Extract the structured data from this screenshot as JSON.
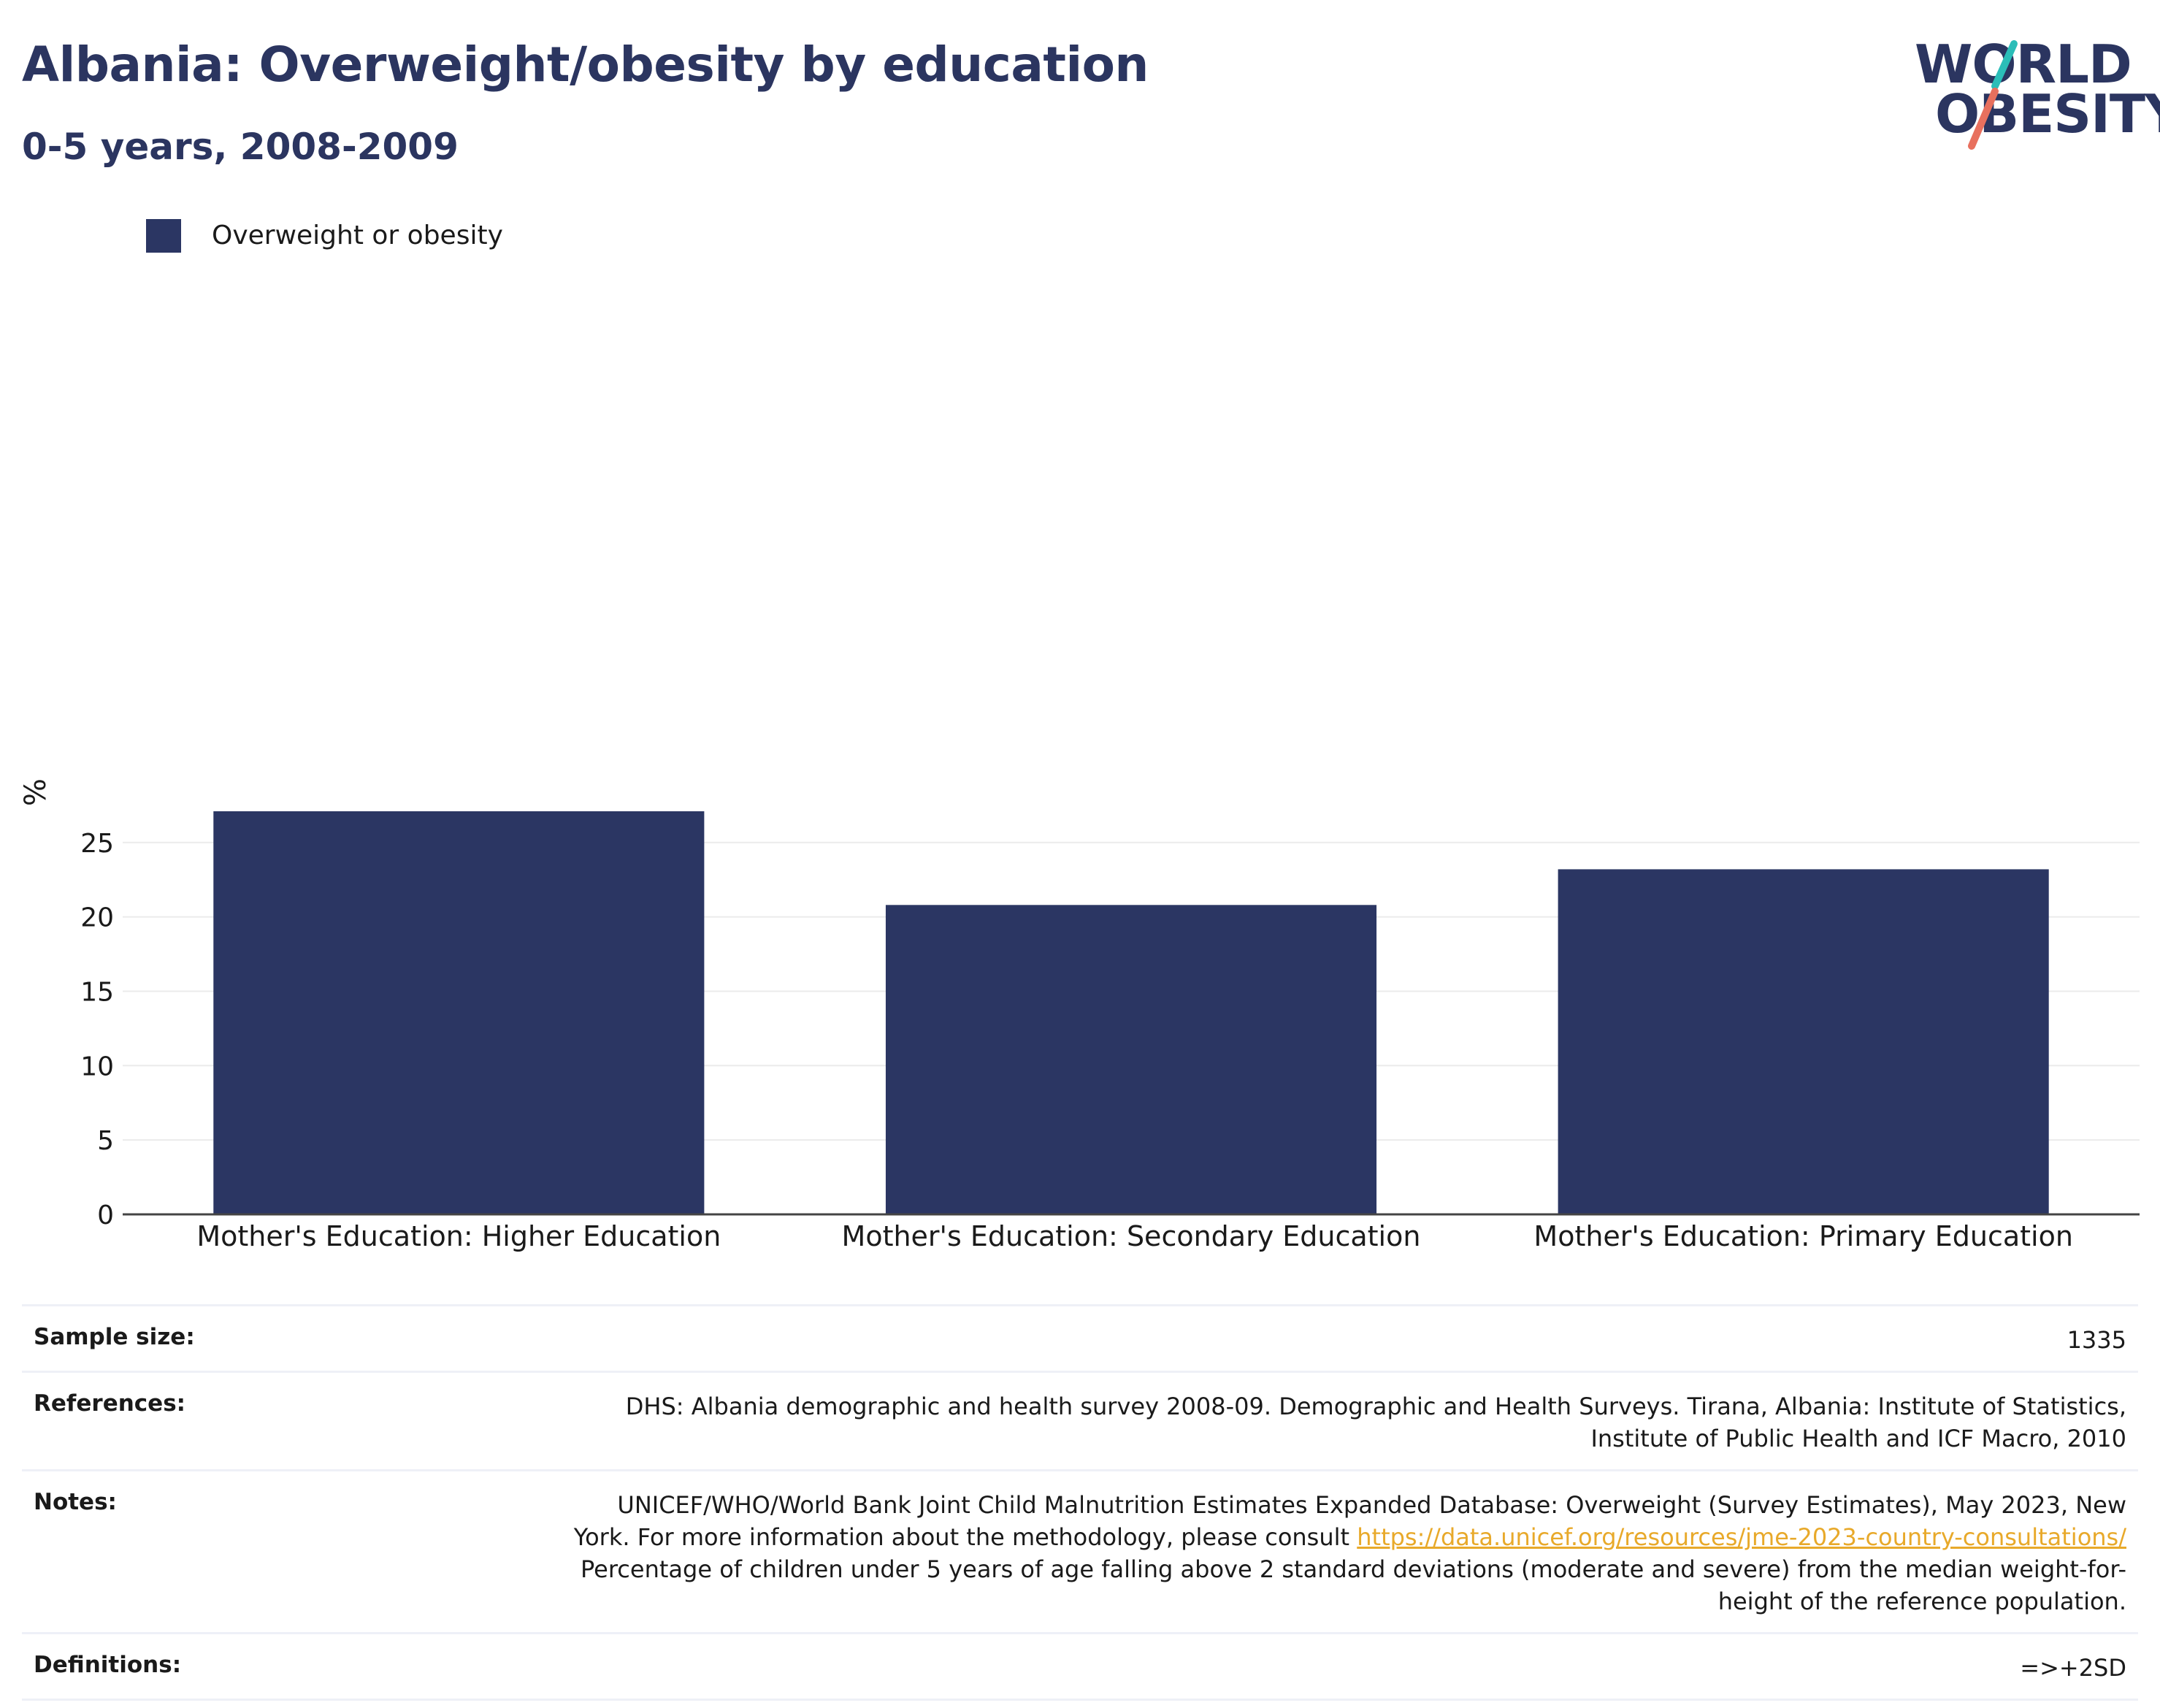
{
  "header": {
    "title": "Albania: Overweight/obesity by education",
    "subtitle": "0-5 years, 2008-2009"
  },
  "logo": {
    "line1": "WORLD",
    "line2": "OBESITY",
    "accent_colors": [
      "#2bbdb8",
      "#e8705e"
    ]
  },
  "legend": {
    "label": "Overweight or obesity",
    "color": "#2b3663"
  },
  "chart_data": {
    "type": "bar",
    "categories": [
      "Mother's Education: Higher Education",
      "Mother's Education: Secondary Education",
      "Mother's Education: Primary Education"
    ],
    "series": [
      {
        "name": "Overweight or obesity",
        "values": [
          27.1,
          20.8,
          23.2
        ],
        "color": "#2b3663"
      }
    ],
    "ylabel": "%",
    "ylim": [
      0,
      30
    ],
    "yticks": [
      0,
      5,
      10,
      15,
      20,
      25
    ],
    "grid": true,
    "legend_position": "top-left"
  },
  "info_table": {
    "sample_size": {
      "label": "Sample size:",
      "value": "1335"
    },
    "references": {
      "label": "References:",
      "line1": "DHS: Albania demographic and health survey 2008-09. Demographic and Health Surveys. Tirana, Albania: Institute of Statistics,",
      "line2": "Institute of Public Health and ICF Macro, 2010"
    },
    "notes": {
      "label": "Notes:",
      "line1": "UNICEF/WHO/World Bank Joint Child Malnutrition Estimates Expanded Database: Overweight (Survey Estimates), May 2023, New",
      "line2_prefix": "York. For more information about the methodology, please consult ",
      "link": "https://data.unicef.org/resources/jme-2023-country-consultations/",
      "line3": "Percentage of children under 5 years of age falling above 2 standard deviations (moderate and severe) from the median weight-for-",
      "line4": "height of the reference population."
    },
    "definitions": {
      "label": "Definitions:",
      "value": "=>+2SD"
    }
  }
}
